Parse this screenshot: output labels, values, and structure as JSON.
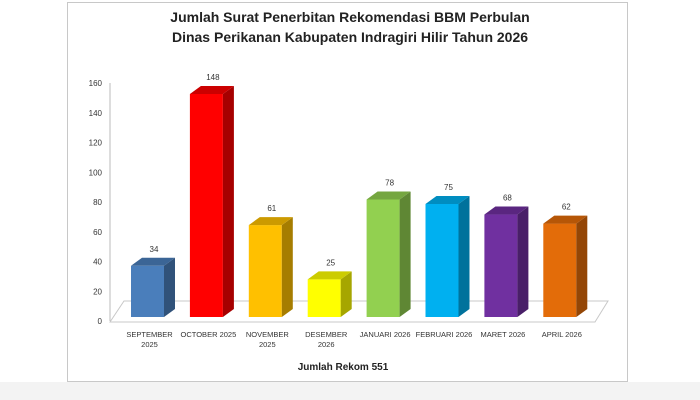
{
  "chart_data": {
    "type": "bar",
    "title_line1": "Jumlah Surat Penerbitan Rekomendasi BBM Perbulan",
    "title_line2": "Dinas Perikanan Kabupaten Indragiri Hilir Tahun 2026",
    "categories": [
      [
        "SEPTEMBER",
        "2025"
      ],
      [
        "OCTOBER 2025"
      ],
      [
        "NOVEMBER",
        "2025"
      ],
      [
        "DESEMBER",
        "2026"
      ],
      [
        "JANUARI 2026"
      ],
      [
        "FEBRUARI 2026"
      ],
      [
        "MARET 2026"
      ],
      [
        "APRIL 2026"
      ]
    ],
    "values": [
      34,
      148,
      61,
      25,
      78,
      75,
      68,
      62
    ],
    "data_labels": [
      "34",
      "148",
      "61",
      "25",
      "78",
      "75",
      "68",
      "62"
    ],
    "colors": [
      "#4a7ebb",
      "#ff0000",
      "#ffc000",
      "#ffff00",
      "#92d050",
      "#00b0f0",
      "#7030a0",
      "#e36c09"
    ],
    "yticks": [
      "0",
      "20",
      "40",
      "60",
      "80",
      "100",
      "120",
      "140",
      "160"
    ],
    "ylim": [
      0,
      160
    ],
    "xlabel": "Jumlah Rekom 551",
    "style": "3d-column",
    "grid": false
  }
}
